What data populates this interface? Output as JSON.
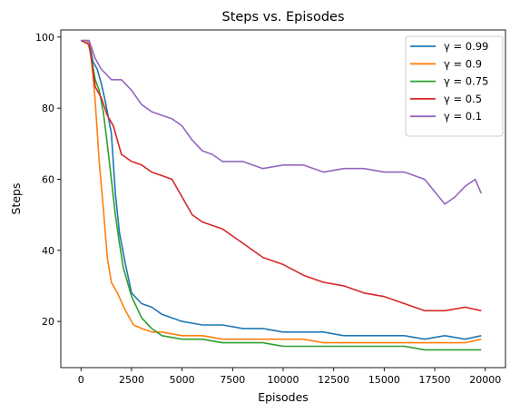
{
  "chart_data": {
    "type": "line",
    "title": "Steps vs. Episodes",
    "xlabel": "Episodes",
    "ylabel": "Steps",
    "xlim": [
      -1000,
      21000
    ],
    "ylim": [
      7,
      102
    ],
    "xticks": [
      0,
      2500,
      5000,
      7500,
      10000,
      12500,
      15000,
      17500,
      20000
    ],
    "yticks": [
      20,
      40,
      60,
      80,
      100
    ],
    "grid": false,
    "legend_position": "top-right",
    "series": [
      {
        "name": "γ = 0.99",
        "color": "#1f77b4",
        "x": [
          0,
          400,
          600,
          800,
          1000,
          1200,
          1500,
          1700,
          1900,
          2200,
          2500,
          3000,
          3500,
          4000,
          4500,
          5000,
          6000,
          7000,
          8000,
          9000,
          10000,
          11000,
          12000,
          13000,
          14000,
          15000,
          16000,
          17000,
          18000,
          19000,
          19800
        ],
        "y": [
          99,
          99,
          93,
          91,
          87,
          82,
          73,
          56,
          45,
          36,
          28,
          25,
          24,
          22,
          21,
          20,
          19,
          19,
          18,
          18,
          17,
          17,
          17,
          16,
          16,
          16,
          16,
          15,
          16,
          15,
          16
        ]
      },
      {
        "name": "γ = 0.9",
        "color": "#ff7f0e",
        "x": [
          0,
          300,
          500,
          700,
          900,
          1100,
          1300,
          1500,
          1800,
          2200,
          2600,
          3000,
          3500,
          4000,
          5000,
          6000,
          7000,
          8000,
          9000,
          10000,
          11000,
          12000,
          13000,
          14000,
          15000,
          16000,
          17000,
          18000,
          19000,
          19800
        ],
        "y": [
          99,
          99,
          95,
          82,
          65,
          52,
          38,
          31,
          28,
          23,
          19,
          18,
          17,
          17,
          16,
          16,
          15,
          15,
          15,
          15,
          15,
          14,
          14,
          14,
          14,
          14,
          14,
          14,
          14,
          15
        ]
      },
      {
        "name": "γ = 0.75",
        "color": "#2ca02c",
        "x": [
          0,
          400,
          700,
          900,
          1100,
          1300,
          1500,
          1700,
          1900,
          2100,
          2500,
          3000,
          3500,
          4000,
          5000,
          6000,
          7000,
          8000,
          9000,
          10000,
          11000,
          12000,
          13000,
          14000,
          15000,
          16000,
          17000,
          18000,
          19000,
          19800
        ],
        "y": [
          99,
          98,
          88,
          85,
          79,
          70,
          60,
          50,
          42,
          35,
          27,
          21,
          18,
          16,
          15,
          15,
          14,
          14,
          14,
          13,
          13,
          13,
          13,
          13,
          13,
          13,
          12,
          12,
          12,
          12
        ]
      },
      {
        "name": "γ = 0.5",
        "color": "#d62728",
        "x": [
          0,
          400,
          700,
          1000,
          1300,
          1600,
          2000,
          2500,
          3000,
          3500,
          4000,
          4500,
          5000,
          5500,
          6000,
          6500,
          7000,
          8000,
          9000,
          10000,
          11000,
          12000,
          13000,
          14000,
          15000,
          16000,
          17000,
          18000,
          19000,
          19800
        ],
        "y": [
          99,
          98,
          86,
          83,
          78,
          75,
          67,
          65,
          64,
          62,
          61,
          60,
          55,
          50,
          48,
          47,
          46,
          42,
          38,
          36,
          33,
          31,
          30,
          28,
          27,
          25,
          23,
          23,
          24,
          23
        ]
      },
      {
        "name": "γ = 0.1",
        "color": "#9467bd",
        "x": [
          0,
          400,
          700,
          1000,
          1500,
          2000,
          2500,
          3000,
          3500,
          4000,
          4500,
          5000,
          5500,
          6000,
          6500,
          7000,
          8000,
          9000,
          10000,
          11000,
          12000,
          13000,
          14000,
          15000,
          16000,
          17000,
          18000,
          18500,
          19000,
          19500,
          19800
        ],
        "y": [
          99,
          99,
          94,
          91,
          88,
          88,
          85,
          81,
          79,
          78,
          77,
          75,
          71,
          68,
          67,
          65,
          65,
          63,
          64,
          64,
          62,
          63,
          63,
          62,
          62,
          60,
          53,
          55,
          58,
          60,
          56
        ]
      }
    ]
  }
}
